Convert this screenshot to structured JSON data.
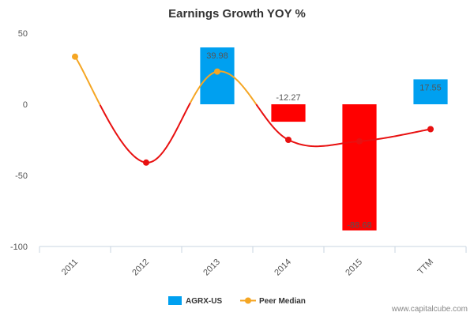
{
  "chart_data": {
    "type": "bar",
    "title": "Earnings Growth YOY %",
    "categories": [
      "2011",
      "2012",
      "2013",
      "2014",
      "2015",
      "TTM"
    ],
    "ylim": [
      -100,
      50
    ],
    "yticks": [
      50,
      0,
      -50,
      -100
    ],
    "series": [
      {
        "name": "AGRX-US",
        "type": "bar",
        "values": [
          null,
          null,
          39.98,
          -12.27,
          -88.68,
          17.55
        ],
        "labels": [
          "",
          "",
          "39.98",
          "-12.27",
          "-88.68",
          "17.55"
        ],
        "positive_color": "#00a0f0",
        "negative_color": "#ff0000"
      },
      {
        "name": "Peer Median",
        "type": "line",
        "values": [
          33.5,
          -41,
          23,
          -25,
          -26,
          -17.5
        ],
        "marker_color_positive": "#f5a623",
        "marker_color_negative": "#e81010",
        "line_color_positive": "#f5a623",
        "line_color_negative": "#e81010"
      }
    ],
    "legend_position": "bottom-center",
    "grid": false
  },
  "watermark": "www.capitalcube.com"
}
